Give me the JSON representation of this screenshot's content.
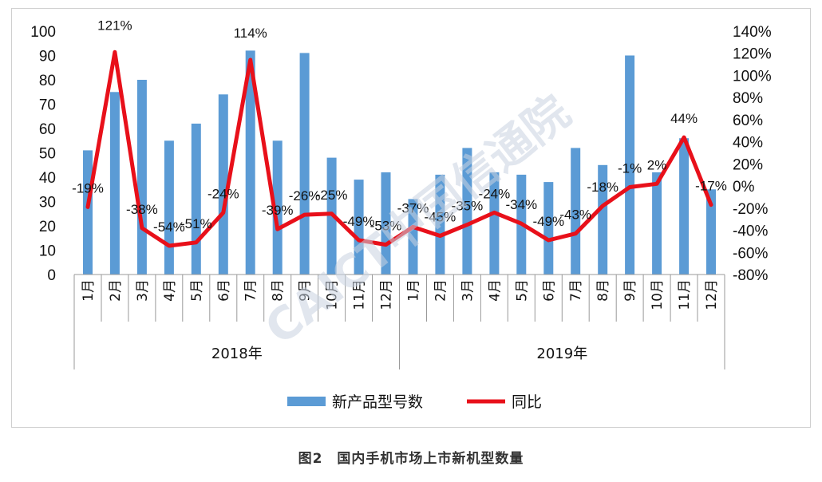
{
  "chart_data": {
    "type": "bar+line",
    "years": [
      "2018年",
      "2019年"
    ],
    "categories": [
      "1月",
      "2月",
      "3月",
      "4月",
      "5月",
      "6月",
      "7月",
      "8月",
      "9月",
      "10月",
      "11月",
      "12月",
      "1月",
      "2月",
      "3月",
      "4月",
      "5月",
      "6月",
      "7月",
      "8月",
      "9月",
      "10月",
      "11月",
      "12月"
    ],
    "series": [
      {
        "name": "新产品型号数",
        "type": "bar",
        "axis": "left",
        "values": [
          51,
          75,
          80,
          55,
          62,
          74,
          92,
          55,
          91,
          48,
          39,
          42,
          31,
          41,
          52,
          42,
          41,
          38,
          52,
          45,
          90,
          42,
          56,
          35
        ]
      },
      {
        "name": "同比",
        "type": "line",
        "axis": "right",
        "values": [
          -19,
          121,
          -38,
          -54,
          -51,
          -24,
          114,
          -39,
          -26,
          -25,
          -49,
          -53,
          -37,
          -45,
          -35,
          -24,
          -34,
          -49,
          -43,
          -18,
          -1,
          2,
          44,
          -17
        ],
        "labels": [
          "-19%",
          "121%",
          "-38%",
          "-54%",
          "-51%",
          "-24%",
          "114%",
          "-39%",
          "-26%",
          "-25%",
          "-49%",
          "-53%",
          "-37%",
          "-45%",
          "-35%",
          "-24%",
          "-34%",
          "-49%",
          "-43%",
          "-18%",
          "-1%",
          "2%",
          "44%",
          "-17%"
        ]
      }
    ],
    "y_left": {
      "min": 0,
      "max": 100,
      "ticks": [
        "0",
        "10",
        "20",
        "30",
        "40",
        "50",
        "60",
        "70",
        "80",
        "90",
        "100"
      ]
    },
    "y_right": {
      "min": -80,
      "max": 140,
      "ticks": [
        "-80%",
        "-60%",
        "-40%",
        "-20%",
        "0%",
        "20%",
        "40%",
        "60%",
        "80%",
        "100%",
        "120%",
        "140%"
      ]
    },
    "legend": {
      "position": "bottom"
    },
    "grid": false,
    "colors": {
      "bar": "#5b9bd5",
      "line": "#e8101a"
    }
  },
  "watermark": {
    "text": "CAICT中国信通院"
  },
  "caption": "图2　国内手机市场上市新机型数量"
}
